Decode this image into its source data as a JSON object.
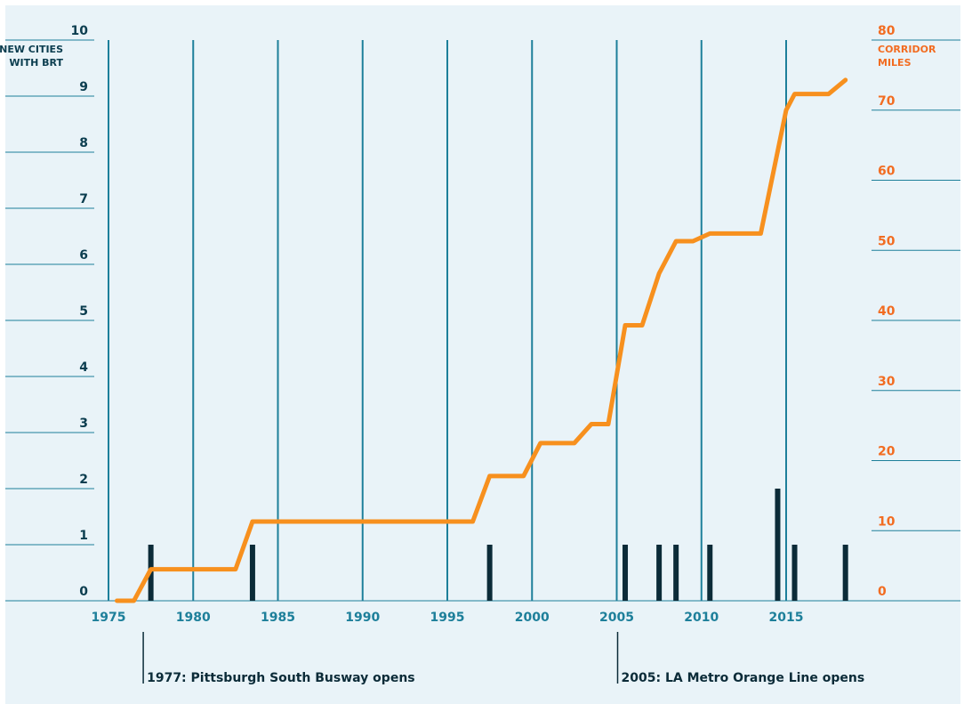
{
  "colors": {
    "background": "#e9f3f8",
    "decade_lines": "#1d7f9a",
    "left_axis": "#0b3d4f",
    "right_axis": "#f26c21",
    "x_axis_ticks": "#1d7f9a",
    "bars": "#0b2b38",
    "line": "#f7901e",
    "annotation": "#0b2b38"
  },
  "chart_data": {
    "type": "bar+line",
    "left_axis": {
      "label_line1": "NEW CITIES",
      "label_line2": "WITH BRT",
      "range": [
        0,
        10
      ],
      "ticks": [
        "0",
        "1",
        "2",
        "3",
        "4",
        "5",
        "6",
        "7",
        "8",
        "9",
        "10"
      ]
    },
    "right_axis": {
      "label_line1": "CORRIDOR",
      "label_line2": "MILES",
      "range": [
        0,
        80
      ],
      "ticks": [
        "0",
        "10",
        "20",
        "30",
        "40",
        "50",
        "60",
        "70",
        "80"
      ]
    },
    "x_axis": {
      "range": [
        1975,
        2019
      ],
      "ticks": [
        "1975",
        "1980",
        "1985",
        "1990",
        "1995",
        "2000",
        "2005",
        "2010",
        "2015"
      ]
    },
    "bars": {
      "name": "New cities with BRT",
      "x": [
        1977.5,
        1983.5,
        1997.5,
        2005.5,
        2007.5,
        2008.5,
        2010.5,
        2014.5,
        2015.5,
        2018.5
      ],
      "values": [
        1,
        1,
        1,
        1,
        1,
        1,
        1,
        2,
        1,
        1
      ]
    },
    "line": {
      "name": "Corridor miles",
      "x": [
        1975.5,
        1976.5,
        1977.5,
        1982.5,
        1983.5,
        1996.5,
        1997.5,
        1999.5,
        2000.5,
        2002.5,
        2003.5,
        2004.5,
        2005.5,
        2006.5,
        2007.5,
        2008.5,
        2009.5,
        2010.5,
        2013.5,
        2015,
        2015.5,
        2017.5,
        2018.5
      ],
      "values": [
        0,
        0,
        4.5,
        4.5,
        11.3,
        11.3,
        17.8,
        17.8,
        22.5,
        22.5,
        25.2,
        25.2,
        39.3,
        39.3,
        46.7,
        51.3,
        51.3,
        52.4,
        52.4,
        70,
        72.3,
        72.3,
        74.3
      ]
    },
    "annotations": [
      {
        "year": 1977,
        "text": "1977: Pittsburgh South Busway opens"
      },
      {
        "year": 2005,
        "text": "2005: LA Metro Orange Line opens"
      }
    ],
    "grid": true,
    "decade_markers": [
      1975,
      1980,
      1985,
      1990,
      1995,
      2000,
      2005,
      2010,
      2015
    ]
  }
}
